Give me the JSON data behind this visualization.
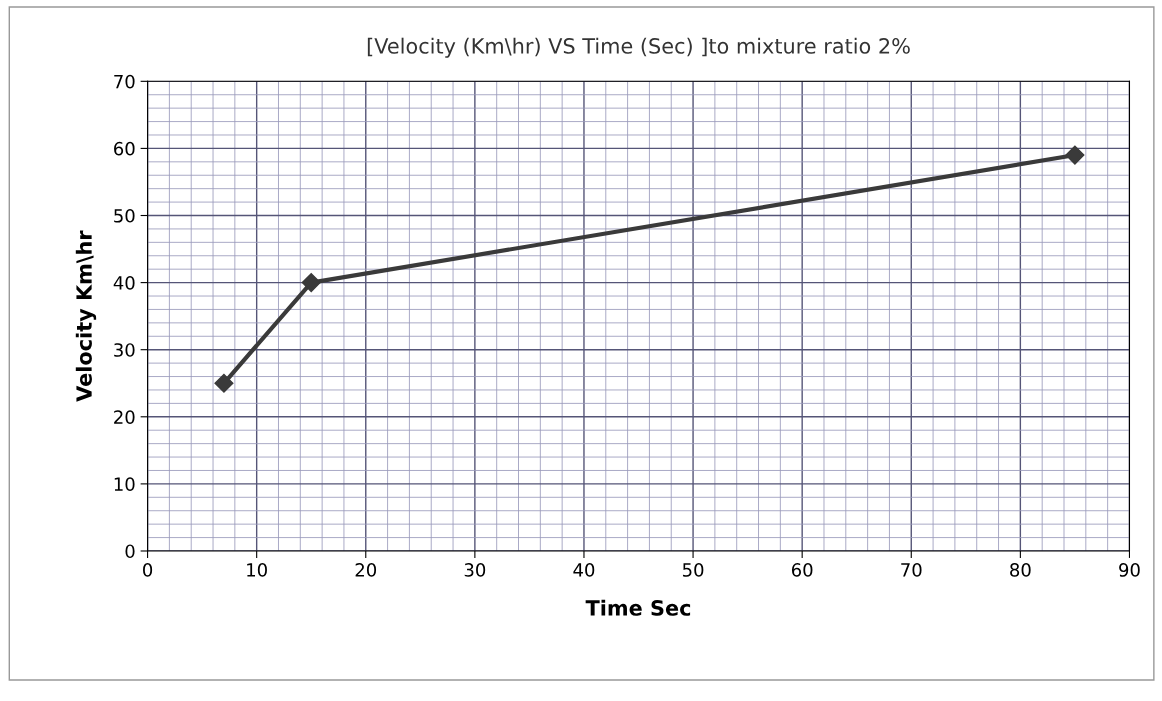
{
  "chart_data": {
    "type": "line",
    "title": "[Velocity (Km\\hr) VS Time (Sec) ]to mixture ratio 2%",
    "xlabel": "Time Sec",
    "ylabel": "Velocity Km\\hr",
    "x": [
      7,
      15,
      85
    ],
    "series": [
      {
        "color": "#3a3a3a",
        "values": [
          25,
          40,
          59
        ]
      }
    ],
    "xlim": [
      0,
      90
    ],
    "xticks": [
      0,
      10,
      20,
      30,
      40,
      50,
      60,
      70,
      80,
      90
    ],
    "ylim": [
      0,
      70
    ],
    "yticks": [
      0,
      10,
      20,
      30,
      40,
      50,
      60,
      70
    ],
    "grid": true,
    "marker": "diamond",
    "line_style": "solid",
    "legend": false
  }
}
